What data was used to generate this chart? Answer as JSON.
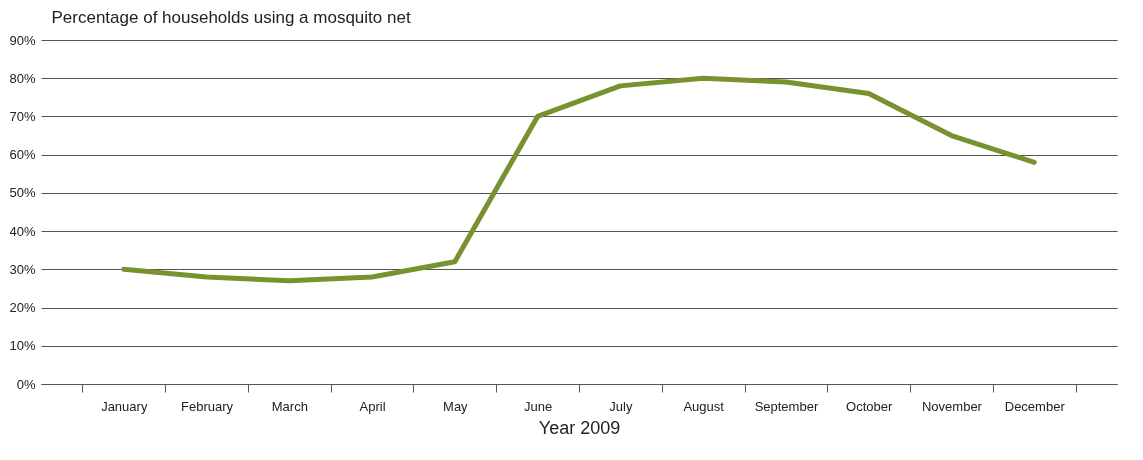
{
  "chart_data": {
    "type": "line",
    "ylabel": "Percentage of households using a mosquito net",
    "xlabel": "Year 2009",
    "categories": [
      "January",
      "February",
      "March",
      "April",
      "May",
      "June",
      "July",
      "August",
      "September",
      "October",
      "November",
      "December"
    ],
    "series": [
      {
        "color": "#77922e",
        "values": [
          30,
          28,
          27,
          28,
          32,
          70,
          78,
          80,
          79,
          76,
          65,
          58
        ]
      }
    ],
    "ylim": [
      0,
      90
    ],
    "yticks": [
      {
        "value": 0,
        "label": "0%"
      },
      {
        "value": 10,
        "label": "10%"
      },
      {
        "value": 20,
        "label": "20%"
      },
      {
        "value": 30,
        "label": "30%"
      },
      {
        "value": 40,
        "label": "40%"
      },
      {
        "value": 50,
        "label": "50%"
      },
      {
        "value": 60,
        "label": "60%"
      },
      {
        "value": 70,
        "label": "70%"
      },
      {
        "value": 80,
        "label": "80%"
      },
      {
        "value": 90,
        "label": "90%"
      }
    ],
    "grid": "y",
    "legend": false,
    "marker": "none",
    "line_style": "solid"
  }
}
